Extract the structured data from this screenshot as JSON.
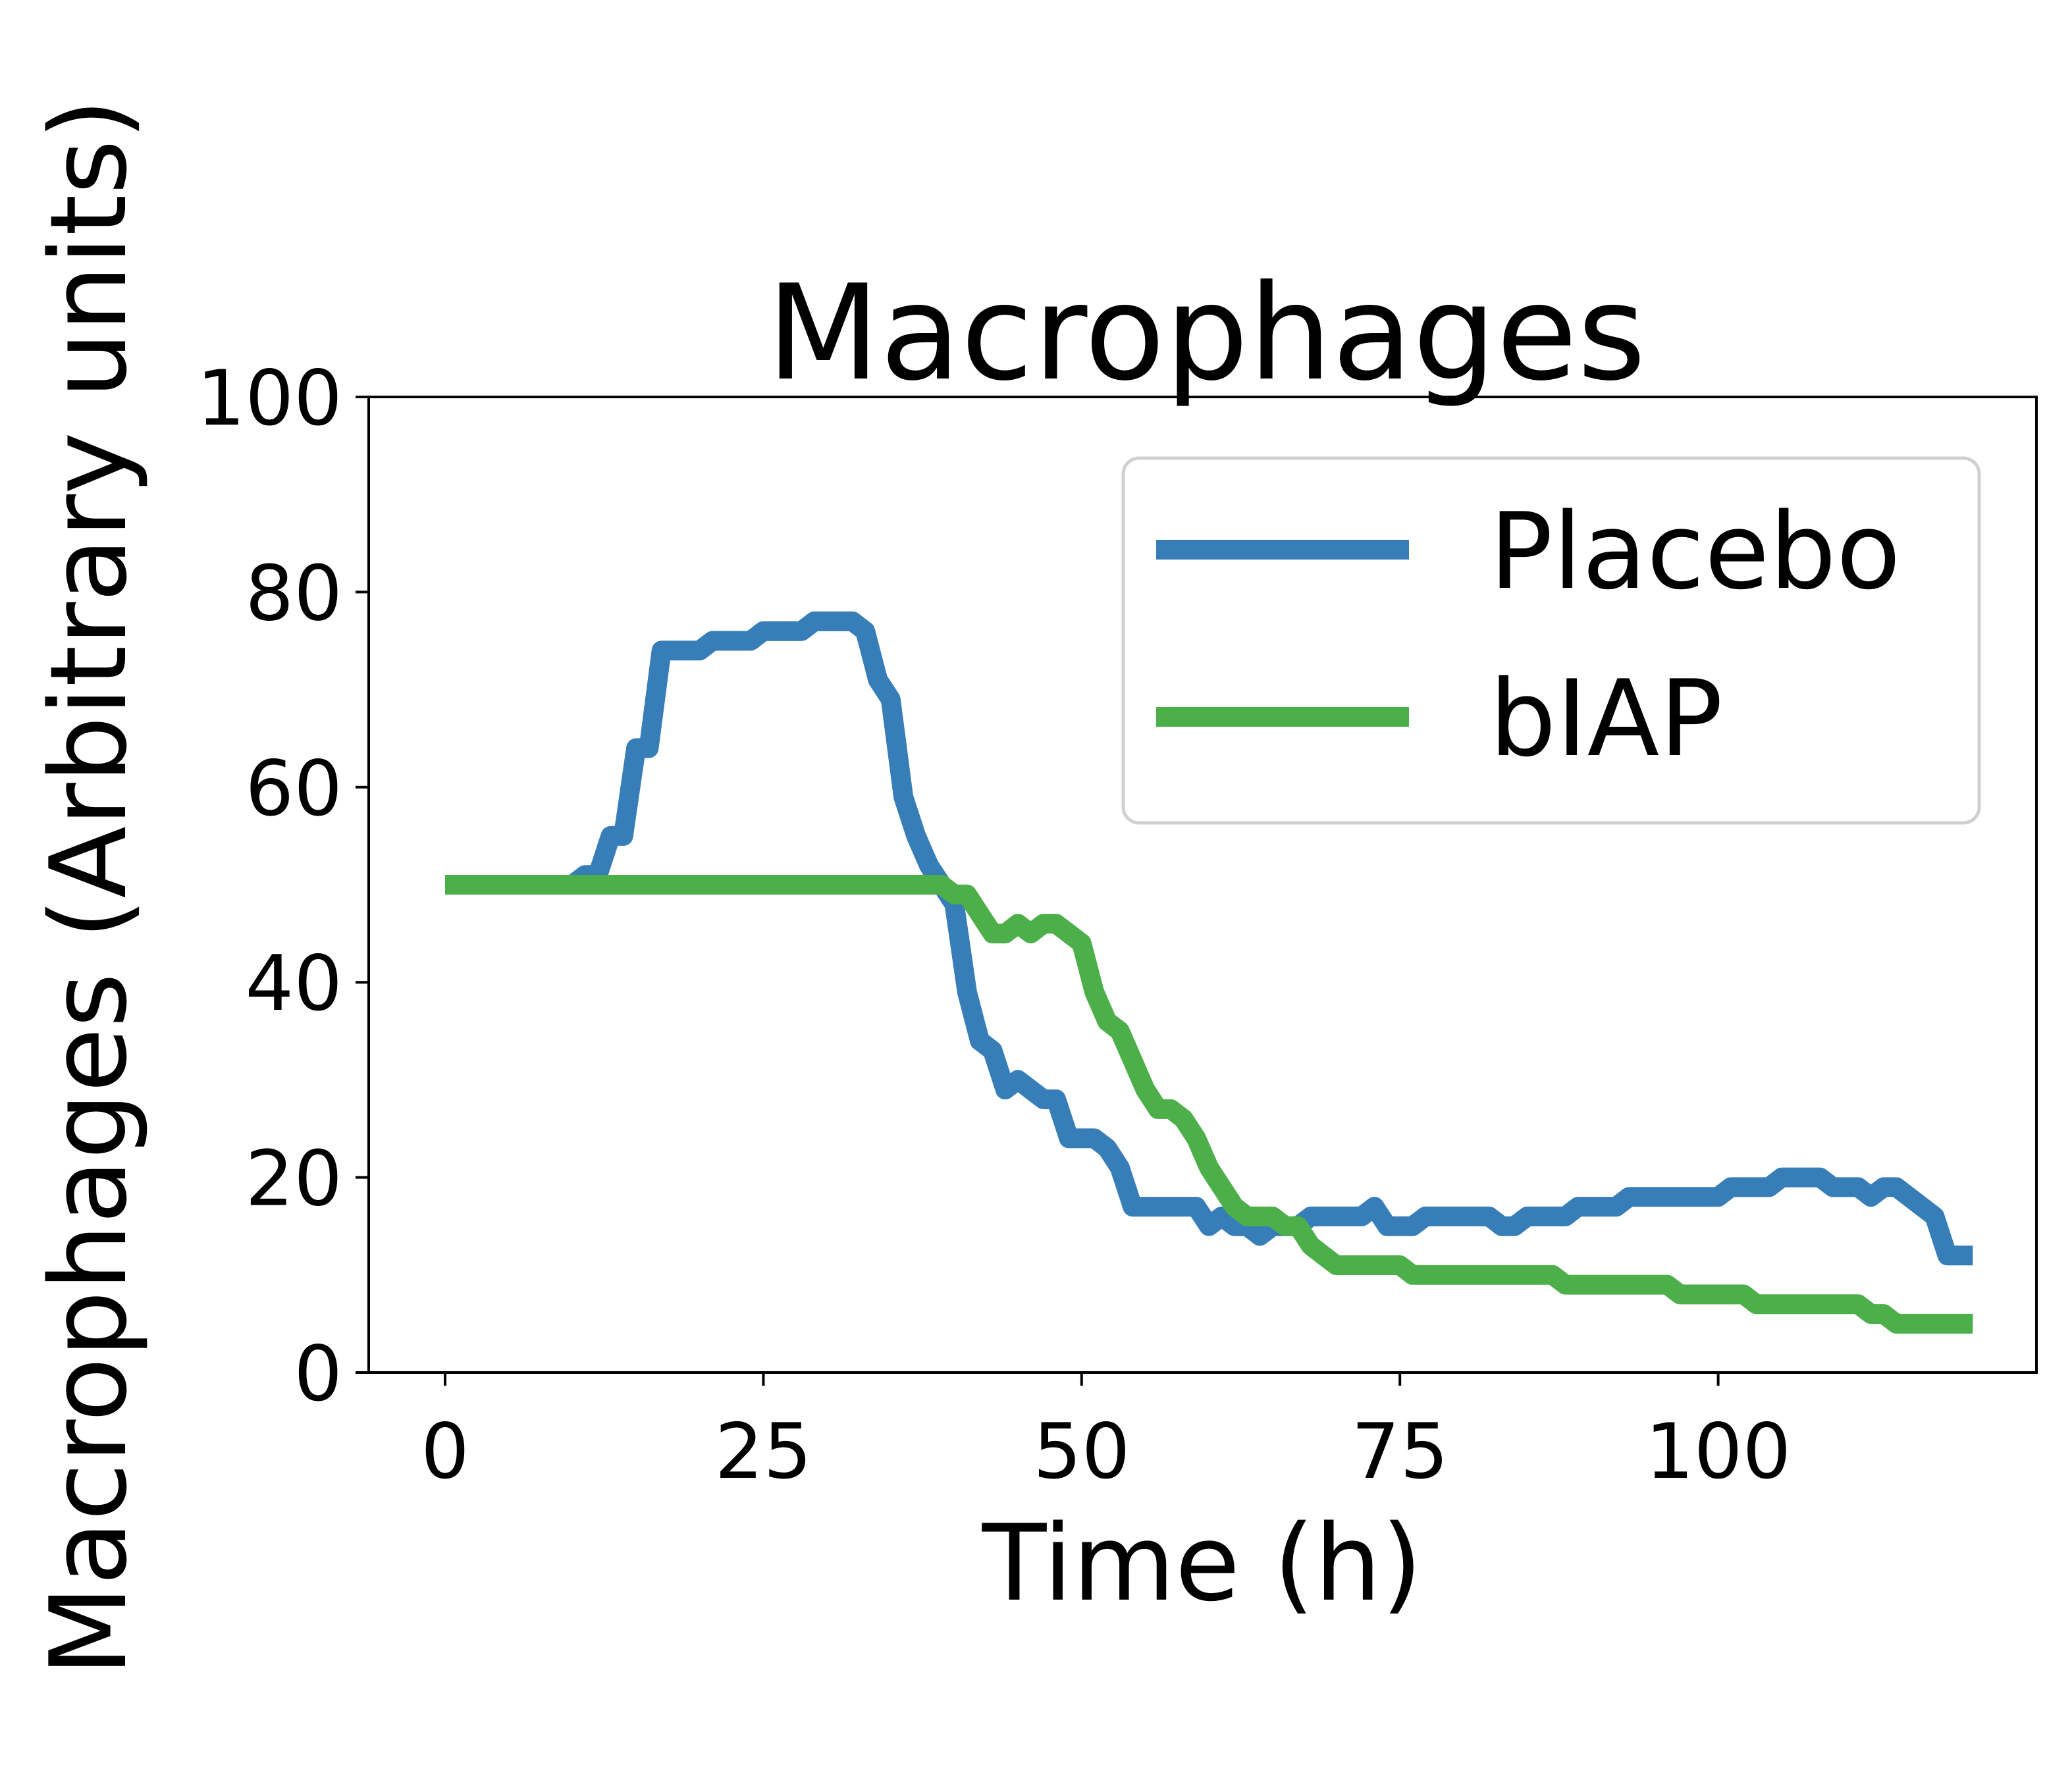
{
  "chart_data": {
    "type": "line",
    "title": "Macrophages",
    "xlabel": "Time (h)",
    "ylabel": "Macrophages (Arbitrary units)",
    "xlim": [
      -6,
      125
    ],
    "ylim": [
      0,
      100
    ],
    "xticks": [
      0,
      25,
      50,
      75,
      100
    ],
    "yticks": [
      0,
      20,
      40,
      60,
      80,
      100
    ],
    "xtick_labels": [
      "0",
      "25",
      "50",
      "75",
      "100"
    ],
    "ytick_labels": [
      "0",
      "20",
      "40",
      "60",
      "80",
      "100"
    ],
    "grid": false,
    "legend_position": "top-right",
    "series": [
      {
        "name": "Placebo",
        "color": "#377eb8",
        "x": [
          0,
          10,
          11,
          12,
          13,
          14,
          15,
          16,
          17,
          18,
          20,
          21,
          24,
          25,
          28,
          29,
          32,
          33,
          34,
          35,
          36,
          37,
          38,
          39,
          40,
          41,
          42,
          43,
          44,
          45,
          47,
          48,
          49,
          51,
          52,
          53,
          54,
          59,
          60,
          61,
          62,
          63,
          64,
          65,
          66,
          67,
          68,
          72,
          73,
          74,
          76,
          77,
          82,
          83,
          84,
          85,
          88,
          89,
          92,
          93,
          100,
          101,
          104,
          105,
          108,
          109,
          111,
          112,
          113,
          114,
          117,
          118,
          120
        ],
        "y": [
          50,
          50,
          51,
          51,
          55,
          55,
          64,
          64,
          74,
          74,
          74,
          75,
          75,
          76,
          76,
          77,
          77,
          76,
          71,
          69,
          59,
          55,
          52,
          50,
          48,
          39,
          34,
          33,
          29,
          30,
          28,
          28,
          24,
          24,
          23,
          21,
          17,
          17,
          15,
          16,
          15,
          15,
          14,
          15,
          15,
          15,
          16,
          16,
          17,
          15,
          15,
          16,
          16,
          15,
          15,
          16,
          16,
          17,
          17,
          18,
          18,
          19,
          19,
          20,
          20,
          19,
          19,
          18,
          19,
          19,
          16,
          12,
          12
        ]
      },
      {
        "name": "bIAP",
        "color": "#4daf4a",
        "x": [
          0,
          38,
          39,
          40,
          41,
          42,
          43,
          44,
          45,
          46,
          47,
          48,
          49,
          50,
          51,
          52,
          53,
          54,
          55,
          56,
          57,
          58,
          59,
          60,
          61,
          62,
          63,
          64,
          65,
          66,
          67,
          68,
          69,
          70,
          71,
          75,
          76,
          87,
          88,
          96,
          97,
          102,
          103,
          111,
          112,
          113,
          114,
          120
        ],
        "y": [
          50,
          50,
          50,
          49,
          49,
          47,
          45,
          45,
          46,
          45,
          46,
          46,
          45,
          44,
          39,
          36,
          35,
          32,
          29,
          27,
          27,
          26,
          24,
          21,
          19,
          17,
          16,
          16,
          16,
          15,
          15,
          13,
          12,
          11,
          11,
          11,
          10,
          10,
          9,
          9,
          8,
          8,
          7,
          7,
          6,
          6,
          5,
          5
        ]
      }
    ]
  }
}
